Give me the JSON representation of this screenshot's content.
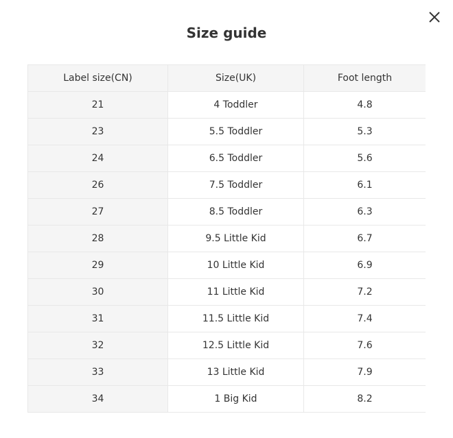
{
  "dialog": {
    "title": "Size guide",
    "close_icon": "close-icon"
  },
  "table": {
    "headers": [
      "Label size(CN)",
      "Size(UK)",
      "Foot length"
    ],
    "rows": [
      [
        "21",
        "4 Toddler",
        "4.8"
      ],
      [
        "23",
        "5.5 Toddler",
        "5.3"
      ],
      [
        "24",
        "6.5 Toddler",
        "5.6"
      ],
      [
        "26",
        "7.5 Toddler",
        "6.1"
      ],
      [
        "27",
        "8.5 Toddler",
        "6.3"
      ],
      [
        "28",
        "9.5 Little Kid",
        "6.7"
      ],
      [
        "29",
        "10 Little Kid",
        "6.9"
      ],
      [
        "30",
        "11 Little Kid",
        "7.2"
      ],
      [
        "31",
        "11.5 Little Kid",
        "7.4"
      ],
      [
        "32",
        "12.5 Little Kid",
        "7.6"
      ],
      [
        "33",
        "13 Little Kid",
        "7.9"
      ],
      [
        "34",
        "1 Big Kid",
        "8.2"
      ]
    ]
  }
}
